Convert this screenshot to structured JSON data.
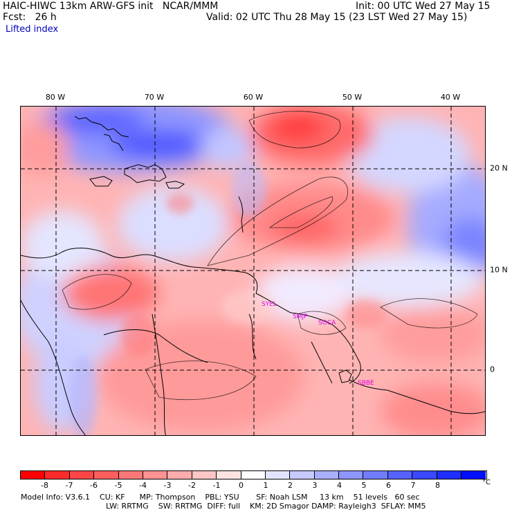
{
  "header": {
    "left_line1": "HAIC-HIWC 13km ARW-GFS init   NCAR/MMM",
    "left_line2": "Fcst:   26 h",
    "right_line1": "Init: 00 UTC Wed 27 May 15",
    "right_line2": "Valid: 02 UTC Thu 28 May 15 (23 LST Wed 27 May 15)",
    "field_name": "Lifted index"
  },
  "map": {
    "longitude_labels": [
      "80 W",
      "70 W",
      "60 W",
      "50 W",
      "40 W"
    ],
    "latitude_labels": [
      "20 N",
      "10 N",
      "0"
    ],
    "station_labels": [
      "SYEL",
      "SMJP",
      "SOCA",
      "SBBE"
    ],
    "station_color": "#e000e0"
  },
  "colorbar": {
    "labels": [
      "-8",
      "-7",
      "-6",
      "-5",
      "-4",
      "-3",
      "-2",
      "-1",
      "0",
      "1",
      "2",
      "3",
      "4",
      "5",
      "6",
      "7",
      "8"
    ],
    "unit": "°C",
    "colors": [
      "#ff0000",
      "#ff2a2a",
      "#ff4646",
      "#ff5e5e",
      "#ff7878",
      "#ff9292",
      "#ffacac",
      "#ffc6c6",
      "#ffe2e2",
      "#ffffff",
      "#e2e4ff",
      "#c6caff",
      "#aab0ff",
      "#8e96ff",
      "#727cff",
      "#5662ff",
      "#3a48ff",
      "#1e2eff",
      "#0010ff"
    ]
  },
  "footer": {
    "line1": "Model Info: V3.6.1    CU: KF      MP: Thompson    PBL: YSU       SF: Noah LSM     13 km    51 levels   60 sec",
    "line2": "LW: RRTMG    SW: RRTMG  DIFF: full    KM: 2D Smagor DAMP: Rayleigh3  SFLAY: MM5"
  }
}
